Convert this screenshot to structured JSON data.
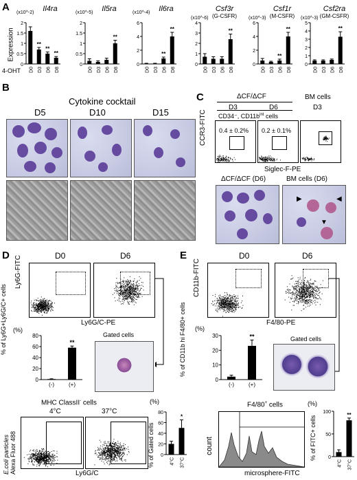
{
  "panelA": {
    "label": "A",
    "ylabel": "Expression",
    "row_label": "4-OHT",
    "sig": "**"
  },
  "chart_data": [
    {
      "type": "bar",
      "title": "Il4ra",
      "subtitle": "",
      "scale": "(x10^-2)",
      "categories": [
        "D0",
        "D3",
        "D6",
        "D8"
      ],
      "values": [
        1.6,
        0.7,
        0.5,
        0.3
      ],
      "errors": [
        0.2,
        0.1,
        0.08,
        0.06
      ],
      "ylim": [
        0,
        2
      ],
      "yticks": [
        0,
        0.5,
        1,
        1.5,
        2
      ],
      "sig": [
        false,
        true,
        true,
        true
      ]
    },
    {
      "type": "bar",
      "title": "Il5ra",
      "subtitle": "",
      "scale": "(x10^-5)",
      "categories": [
        "D0",
        "D3",
        "D6",
        "D8"
      ],
      "values": [
        0.15,
        0.1,
        0.2,
        1.0
      ],
      "errors": [
        0.1,
        0.05,
        0.08,
        0.15
      ],
      "ylim": [
        0,
        2
      ],
      "yticks": [
        0,
        0.5,
        1,
        1.5,
        2
      ],
      "sig": [
        false,
        false,
        false,
        true
      ]
    },
    {
      "type": "bar",
      "title": "Il6ra",
      "subtitle": "",
      "scale": "(x10^-4)",
      "categories": [
        "D0",
        "D3",
        "D6",
        "D8"
      ],
      "values": [
        0.05,
        0.05,
        0.8,
        4.0
      ],
      "errors": [
        0.05,
        0.05,
        0.2,
        0.6
      ],
      "ylim": [
        0,
        6
      ],
      "yticks": [
        0,
        2,
        4,
        6
      ],
      "sig": [
        false,
        false,
        true,
        true
      ]
    },
    {
      "type": "bar",
      "title": "Csf3r",
      "subtitle": "(G-CSFR)",
      "scale": "(x10^-6)",
      "categories": [
        "D0",
        "D3",
        "D6",
        "D8"
      ],
      "values": [
        0.7,
        0.5,
        0.5,
        2.4
      ],
      "errors": [
        0.3,
        0.2,
        0.2,
        0.5
      ],
      "ylim": [
        0,
        4
      ],
      "yticks": [
        0,
        1,
        2,
        3,
        4
      ],
      "sig": [
        false,
        false,
        false,
        true
      ]
    },
    {
      "type": "bar",
      "title": "Csf1r",
      "subtitle": "(M-CSFR)",
      "scale": "(x10^-3)",
      "categories": [
        "D0",
        "D3",
        "D6",
        "D8"
      ],
      "values": [
        0.5,
        0.3,
        0.5,
        4.0
      ],
      "errors": [
        0.3,
        0.1,
        0.2,
        0.6
      ],
      "ylim": [
        0,
        6
      ],
      "yticks": [
        0,
        2,
        4,
        6
      ],
      "sig": [
        false,
        false,
        true,
        true
      ]
    },
    {
      "type": "bar",
      "title": "Csf2ra",
      "subtitle": "(GM-CSFR)",
      "scale": "(x10^-3)",
      "categories": [
        "D0",
        "D3",
        "D6",
        "D8"
      ],
      "values": [
        0.4,
        0.4,
        0.5,
        3.3
      ],
      "errors": [
        0.1,
        0.1,
        0.1,
        0.6
      ],
      "ylim": [
        0,
        5
      ],
      "yticks": [
        0,
        1,
        2,
        3,
        4,
        5
      ],
      "sig": [
        false,
        false,
        false,
        true
      ]
    },
    {
      "type": "bar",
      "title": "",
      "ylabel": "% of Ly6G+Ly6G/C+ cells",
      "unit": "(%)",
      "categories": [
        "(-)",
        "(+)"
      ],
      "values": [
        1,
        58
      ],
      "errors": [
        0.5,
        3
      ],
      "ylim": [
        0,
        80
      ],
      "yticks": [
        0,
        20,
        40,
        60,
        80
      ],
      "sig": [
        false,
        true
      ]
    },
    {
      "type": "bar",
      "title": "",
      "ylabel": "% of CD11b hi F4/80+ cells",
      "unit": "(%)",
      "categories": [
        "(-)",
        "(+)"
      ],
      "values": [
        2,
        23
      ],
      "errors": [
        1,
        4
      ],
      "ylim": [
        0,
        30
      ],
      "yticks": [
        0,
        10,
        20,
        30
      ],
      "sig": [
        false,
        true
      ]
    },
    {
      "type": "bar",
      "title": "",
      "ylabel": "% of Gated cells",
      "unit": "(%)",
      "categories": [
        "4°C",
        "37°C"
      ],
      "values": [
        20,
        50
      ],
      "errors": [
        5,
        15
      ],
      "ylim": [
        0,
        80
      ],
      "yticks": [
        0,
        20,
        40,
        60,
        80
      ],
      "sig": [
        false,
        true
      ],
      "sig_label": "*"
    },
    {
      "type": "bar",
      "title": "",
      "ylabel": "% of FITC+ cells",
      "unit": "(%)",
      "categories": [
        "4°C",
        "37°C"
      ],
      "values": [
        10,
        80
      ],
      "errors": [
        5,
        5
      ],
      "ylim": [
        0,
        100
      ],
      "yticks": [
        0,
        50,
        100
      ],
      "sig": [
        false,
        true
      ]
    }
  ],
  "panelB": {
    "label": "B",
    "title": "Cytokine cocktail",
    "days": [
      "D5",
      "D10",
      "D15"
    ]
  },
  "panelC": {
    "label": "C",
    "genotype": "ΔCF/ΔCF",
    "d3": "D3",
    "d6": "D6",
    "bm_cells": "BM cells",
    "bm_d3": "D3",
    "gate_desc": "CD34⁻, CD11b",
    "gate_desc_sup": "int",
    "gate_desc_end": " cells",
    "pct1": "0.4 ± 0.2%",
    "pct2": "0.2 ± 0.1%",
    "ylabel": "CCR3-FITC",
    "xlabel": "Siglec-F-PE",
    "img1": "ΔCF/ΔCF (D6)",
    "img2": "BM cells (D6)"
  },
  "panelD": {
    "label": "D",
    "d0": "D0",
    "d6": "D6",
    "ylabel": "Ly6G-FITC",
    "xlabel": "Ly6G/C-PE",
    "gated": "Gated cells",
    "mhc": "MHC ClassII",
    "mhc_sup": "-",
    "mhc_end": " cells",
    "t4": "4°C",
    "t37": "37°C",
    "ylabel2a": "E.coli particles",
    "ylabel2b": "Alexa Fluor 488",
    "xlabel2": "Ly6G/C"
  },
  "panelE": {
    "label": "E",
    "d0": "D0",
    "d6": "D6",
    "ylabel": "CD11b-FITC",
    "xlabel": "F4/80-PE",
    "gated": "Gated cells",
    "f480": "F4/80",
    "f480_sup": "+",
    "f480_end": " cells",
    "count": "count",
    "xlabel2": "microsphere-FITC"
  }
}
